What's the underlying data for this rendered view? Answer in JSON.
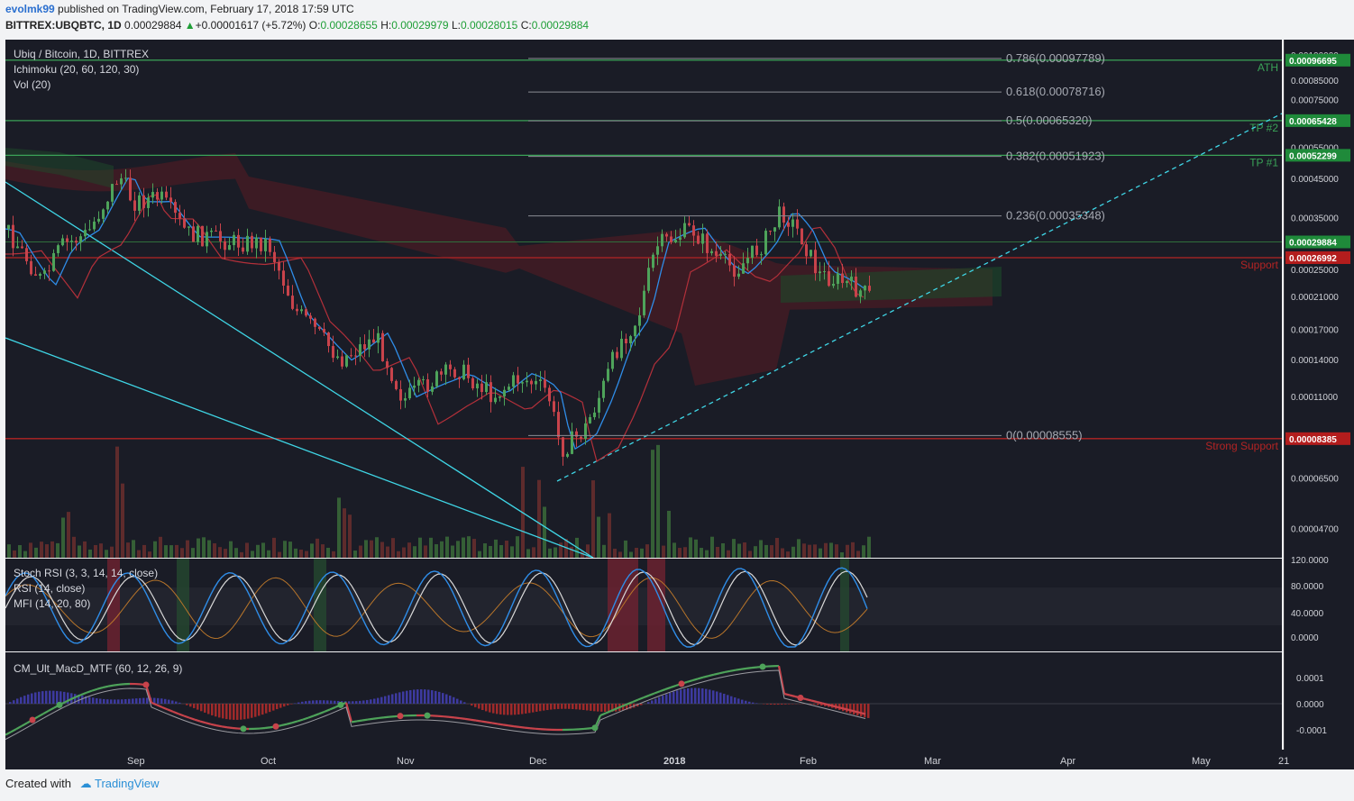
{
  "header": {
    "user": "evolmk99",
    "published_text": "published on TradingView.com, February 17, 2018 17:59 UTC",
    "symbol": "BITTREX:UBQBTC, 1D",
    "last": "0.00029884",
    "change": "+0.00001617 (+5.72%)",
    "o_label": "O:",
    "o": "0.00028655",
    "h_label": "H:",
    "h": "0.00029979",
    "l_label": "L:",
    "l": "0.00028015",
    "c_label": "C:",
    "c": "0.00029884"
  },
  "main_panel": {
    "title": "Ubiq / Bitcoin, 1D, BITTREX",
    "indicator1": "Ichimoku (20, 60, 120, 30)",
    "indicator2": "Vol (20)"
  },
  "stoch_panel": {
    "line1": "Stoch RSI (3, 3, 14, 14, close)",
    "line2": "RSI (14, close)",
    "line3": "MFI (14, 20, 80)",
    "ticks": [
      "120.0000",
      "80.0000",
      "40.0000",
      "0.0000"
    ]
  },
  "macd_panel": {
    "title": "CM_Ult_MacD_MTF (60, 12, 26, 9)",
    "ticks": [
      "0.0001",
      "0.0000",
      "-0.0001"
    ]
  },
  "time_axis": [
    "Sep",
    "Oct",
    "Nov",
    "Dec",
    "2018",
    "Feb",
    "Mar",
    "Apr",
    "May",
    "21"
  ],
  "price_axis": [
    "0.00100000",
    "0.00085000",
    "0.00075000",
    "0.00055000",
    "0.00045000",
    "0.00035000",
    "0.00025000",
    "0.00021000",
    "0.00017000",
    "0.00014000",
    "0.00011000",
    "0.00006500",
    "0.00004700"
  ],
  "price_badges": [
    {
      "text": "0.00096695",
      "color": "#1f8a3a"
    },
    {
      "text": "0.00065428",
      "color": "#1f8a3a"
    },
    {
      "text": "0.00052299",
      "color": "#1f8a3a"
    },
    {
      "text": "0.00029884",
      "color": "#1f8a3a"
    },
    {
      "text": "0.00026992",
      "color": "#b31d1d"
    },
    {
      "text": "0.00008385",
      "color": "#b31d1d"
    }
  ],
  "chart_data": {
    "type": "candlestick",
    "title": "Ubiq / Bitcoin, 1D, BITTREX",
    "x_range": [
      "Aug",
      "May 21"
    ],
    "y_scale": "log",
    "horizontal_levels": [
      {
        "label": "ATH",
        "value": 0.00096695
      },
      {
        "label": "TP #2",
        "value": 0.00065428
      },
      {
        "label": "TP #1",
        "value": 0.00052299
      },
      {
        "label": "Support",
        "value": 0.00026992
      },
      {
        "label": "Strong Support",
        "value": 8.385e-05
      }
    ],
    "fibonacci_levels": [
      {
        "label": "0.786(0.00097789)",
        "value": 0.00097789
      },
      {
        "label": "0.618(0.00078716)",
        "value": 0.00078716
      },
      {
        "label": "0.5(0.00065320)",
        "value": 0.0006532
      },
      {
        "label": "0.382(0.00051923)",
        "value": 0.00051923
      },
      {
        "label": "0.236(0.00035348)",
        "value": 0.00035348
      },
      {
        "label": "0(0.00008555)",
        "value": 8.555e-05
      }
    ],
    "last_close": 0.00029884
  }
}
